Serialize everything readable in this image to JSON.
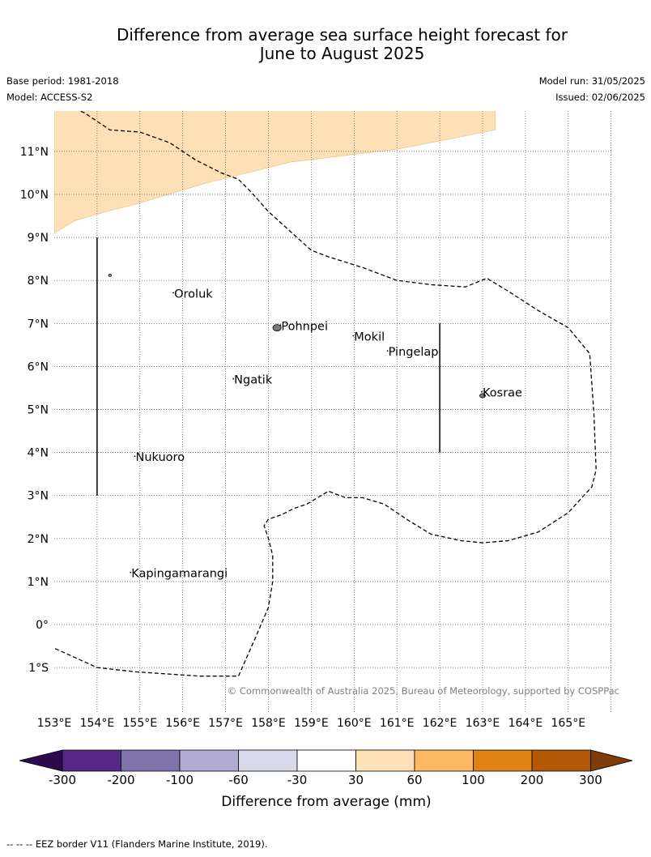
{
  "title_line1": "Difference from average sea surface height forecast for",
  "title_line2": "June to August 2025",
  "base_period": "Base period: 1981-2018",
  "model": "Model: ACCESS-S2",
  "model_run": "Model run: 31/05/2025",
  "issued": "Issued: 02/06/2025",
  "copyright": "© Commonwealth of Australia 2025, Bureau of Meteorology, supported by COSPPac",
  "footer": "--  --  -- EEZ border V11 (Flanders Marine Institute, 2019).",
  "map": {
    "lon_range": [
      153,
      166
    ],
    "lat_range": [
      -2,
      12
    ],
    "lon_ticks": [
      "153°E",
      "154°E",
      "155°E",
      "156°E",
      "157°E",
      "158°E",
      "159°E",
      "160°E",
      "161°E",
      "162°E",
      "163°E",
      "164°E",
      "165°E"
    ],
    "lat_ticks": [
      {
        "label": "11°N",
        "lat": 11
      },
      {
        "label": "10°N",
        "lat": 10
      },
      {
        "label": "9°N",
        "lat": 9
      },
      {
        "label": "8°N",
        "lat": 8
      },
      {
        "label": "7°N",
        "lat": 7
      },
      {
        "label": "6°N",
        "lat": 6
      },
      {
        "label": "5°N",
        "lat": 5
      },
      {
        "label": "4°N",
        "lat": 4
      },
      {
        "label": "3°N",
        "lat": 3
      },
      {
        "label": "2°N",
        "lat": 2
      },
      {
        "label": "1°N",
        "lat": 1
      },
      {
        "label": "0°",
        "lat": 0
      },
      {
        "label": "1°S",
        "lat": -1
      }
    ],
    "places": [
      {
        "name": "Oroluk",
        "lon": 155.8,
        "lat": 7.6
      },
      {
        "name": "Pohnpei",
        "lon": 158.3,
        "lat": 6.85
      },
      {
        "name": "Mokil",
        "lon": 160.0,
        "lat": 6.6
      },
      {
        "name": "Pingelap",
        "lon": 160.8,
        "lat": 6.25
      },
      {
        "name": "Ngatik",
        "lon": 157.2,
        "lat": 5.6
      },
      {
        "name": "Kosrae",
        "lon": 163.0,
        "lat": 5.3
      },
      {
        "name": "Nukuoro",
        "lon": 154.9,
        "lat": 3.8
      },
      {
        "name": "Kapingamarangi",
        "lon": 154.8,
        "lat": 1.1
      }
    ],
    "anomaly_band": "30 to 60 mm",
    "anomaly_color": "#fde0b6"
  },
  "colorbar": {
    "label": "Difference from average (mm)",
    "ticks": [
      "-300",
      "-200",
      "-100",
      "-60",
      "-30",
      "30",
      "60",
      "100",
      "200",
      "300"
    ],
    "colors": [
      "#2d0a4e",
      "#542788",
      "#8073ac",
      "#b2abd2",
      "#d8daeb",
      "#ffffff",
      "#fee0b6",
      "#fdb863",
      "#e08214",
      "#b35806",
      "#7f3b08"
    ]
  }
}
